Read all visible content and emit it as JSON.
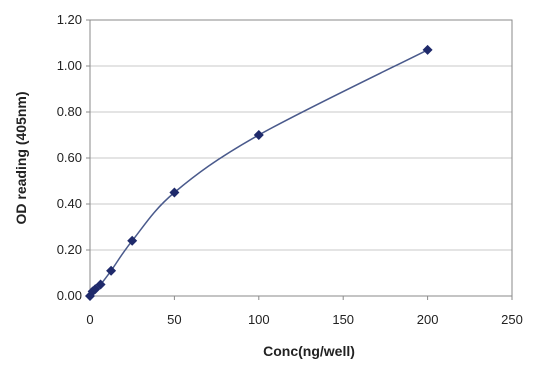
{
  "chart_data": {
    "type": "scatter",
    "title": "",
    "xlabel": "Conc(ng/well)",
    "ylabel": "OD reading (405nm)",
    "xlim": [
      0,
      250
    ],
    "ylim": [
      0,
      1.2
    ],
    "x_ticks": [
      "0",
      "50",
      "100",
      "150",
      "200",
      "250"
    ],
    "y_ticks": [
      "0.00",
      "0.20",
      "0.40",
      "0.60",
      "0.80",
      "1.00",
      "1.20"
    ],
    "grid": "horizontal",
    "legend": "none",
    "trendline": true,
    "series": [
      {
        "x": [
          0,
          1.56,
          3.13,
          6.25,
          12.5,
          25,
          50,
          100,
          200
        ],
        "y": [
          0.0,
          0.02,
          0.03,
          0.05,
          0.11,
          0.24,
          0.45,
          0.7,
          1.07
        ]
      }
    ],
    "colors": {
      "marker": "#1f2a6b",
      "line": "#4a5a8c",
      "grid": "#c8c8c8",
      "axis": "#8a8a8a"
    }
  }
}
